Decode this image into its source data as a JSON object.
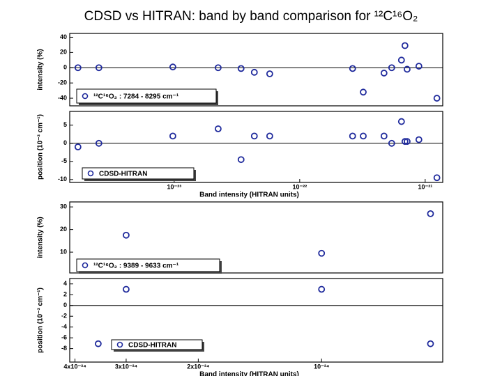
{
  "title": "CDSD vs HITRAN: band by band comparison for ¹²C¹⁶O₂",
  "chart_data": [
    {
      "type": "scatter",
      "ylabel": "intensity (%)",
      "annotation": "¹²C¹⁶O₂ : 7284 - 8295 cm⁻¹",
      "xscale": "log",
      "color": "#1f2a9c",
      "xlim": [
        1.47e-24,
        1.38e-21
      ],
      "ylim": [
        -50,
        45
      ],
      "yticks": [
        -40,
        -20,
        0,
        20,
        40
      ],
      "hline": 0,
      "x": [
        1.71e-24,
        2.51e-24,
        9.75e-24,
        2.24e-23,
        3.41e-23,
        4.35e-23,
        5.77e-23,
        2.64e-22,
        3.21e-22,
        4.7e-22,
        5.41e-22,
        6.47e-22,
        6.9e-22,
        7.18e-22,
        8.91e-22,
        1.24e-21
      ],
      "values": [
        0,
        0,
        1,
        0,
        -1,
        -6,
        -8,
        -1,
        -32,
        -7,
        0,
        10,
        29,
        -2,
        2,
        -40
      ]
    },
    {
      "type": "scatter",
      "ylabel": "position (10⁻³ cm⁻¹)",
      "annotation": "CDSD-HITRAN",
      "xlabel": "Band intensity (HITRAN units)",
      "xscale": "log",
      "color": "#1f2a9c",
      "xlim": [
        1.47e-24,
        1.38e-21
      ],
      "ylim": [
        -10.8,
        8.8
      ],
      "yticks": [
        -10,
        -5,
        0,
        5
      ],
      "hline": 0,
      "xticks": [
        {
          "value": 1e-23,
          "label": "10⁻²³"
        },
        {
          "value": 1e-22,
          "label": "10⁻²²"
        },
        {
          "value": 1e-21,
          "label": "10⁻²¹"
        }
      ],
      "x": [
        1.71e-24,
        2.51e-24,
        9.75e-24,
        2.24e-23,
        3.41e-23,
        4.35e-23,
        5.77e-23,
        2.64e-22,
        3.21e-22,
        4.7e-22,
        5.41e-22,
        6.47e-22,
        6.9e-22,
        7.18e-22,
        8.91e-22,
        1.24e-21
      ],
      "values": [
        -1,
        0,
        2,
        4,
        -4.5,
        2,
        2,
        2,
        2,
        2,
        0,
        6,
        0.5,
        0.5,
        1,
        -9.5
      ]
    },
    {
      "type": "scatter",
      "ylabel": "intensity (%)",
      "annotation": "¹²C¹⁶O₂ : 9389 - 9633 cm⁻¹",
      "xscale": "log",
      "color": "#1f2a9c",
      "xlim": [
        4.12e-24,
        5.06e-25
      ],
      "ylim": [
        0.8,
        32.2
      ],
      "yticks": [
        10,
        20,
        30
      ],
      "x": [
        3e-24,
        1e-24,
        5.42e-25
      ],
      "values": [
        17.5,
        9.5,
        27
      ]
    },
    {
      "type": "scatter",
      "ylabel": "position (10⁻³ cm⁻¹)",
      "annotation": "CDSD-HITRAN",
      "xlabel": "Band intensity (HITRAN units)",
      "xscale": "log",
      "color": "#1f2a9c",
      "xlim": [
        4.12e-24,
        5.06e-25
      ],
      "ylim": [
        -10.5,
        5
      ],
      "yticks": [
        -8,
        -6,
        -4,
        -2,
        0,
        2,
        4
      ],
      "hline": 0,
      "xticks": [
        {
          "value": 4e-24,
          "label": "4x10⁻²⁴"
        },
        {
          "value": 3e-24,
          "label": "3x10⁻²⁴"
        },
        {
          "value": 2e-24,
          "label": "2x10⁻²⁴"
        },
        {
          "value": 1e-24,
          "label": "10⁻²⁴"
        }
      ],
      "x": [
        3.51e-24,
        3e-24,
        1e-24,
        5.42e-25
      ],
      "values": [
        -7.1,
        3,
        3,
        -7.1
      ]
    }
  ]
}
